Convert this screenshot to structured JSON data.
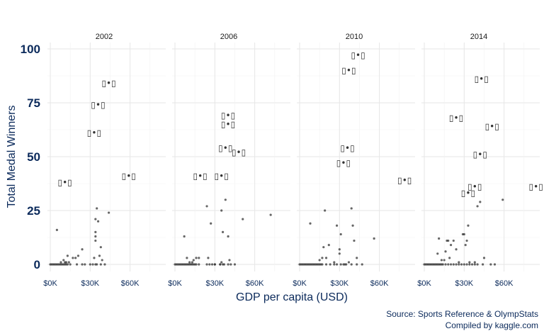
{
  "chart_data": {
    "type": "scatter",
    "facets": [
      "2002",
      "2006",
      "2010",
      "2014"
    ],
    "xlabel": "GDP per capita (USD)",
    "ylabel": "Total Medal Winners",
    "xlim": [
      0,
      80000
    ],
    "ylim": [
      0,
      100
    ],
    "xticks": [
      0,
      30000,
      60000
    ],
    "xtick_labels": [
      "$0K",
      "$30K",
      "$60K"
    ],
    "yticks": [
      0,
      25,
      50,
      75,
      100
    ],
    "grid": true,
    "caption": [
      "Source: Sports Reference & OlympStats",
      "Compiled by kaggle.com"
    ],
    "label_glyph": "▯•▯",
    "panels": [
      {
        "name": "2002",
        "labeled": [
          {
            "x": 11000,
            "y": 38
          },
          {
            "x": 33000,
            "y": 61
          },
          {
            "x": 36000,
            "y": 74
          },
          {
            "x": 44000,
            "y": 84
          },
          {
            "x": 59000,
            "y": 41
          }
        ],
        "points": [
          {
            "x": 0,
            "y": 0
          },
          {
            "x": 1000,
            "y": 0
          },
          {
            "x": 2000,
            "y": 0
          },
          {
            "x": 3000,
            "y": 0
          },
          {
            "x": 4000,
            "y": 0
          },
          {
            "x": 5000,
            "y": 0
          },
          {
            "x": 6000,
            "y": 0
          },
          {
            "x": 7000,
            "y": 0
          },
          {
            "x": 8000,
            "y": 0
          },
          {
            "x": 9000,
            "y": 0
          },
          {
            "x": 10000,
            "y": 0
          },
          {
            "x": 11000,
            "y": 0
          },
          {
            "x": 12000,
            "y": 0
          },
          {
            "x": 13000,
            "y": 0
          },
          {
            "x": 15000,
            "y": 0
          },
          {
            "x": 20000,
            "y": 0
          },
          {
            "x": 24000,
            "y": 0
          },
          {
            "x": 26000,
            "y": 0
          },
          {
            "x": 32000,
            "y": 0
          },
          {
            "x": 34000,
            "y": 0
          },
          {
            "x": 38000,
            "y": 0
          },
          {
            "x": 41000,
            "y": 0
          },
          {
            "x": 5000,
            "y": 16
          },
          {
            "x": 8000,
            "y": 1
          },
          {
            "x": 10000,
            "y": 2
          },
          {
            "x": 11000,
            "y": 1
          },
          {
            "x": 12000,
            "y": 1
          },
          {
            "x": 13000,
            "y": 4
          },
          {
            "x": 14000,
            "y": 1
          },
          {
            "x": 17000,
            "y": 3
          },
          {
            "x": 19000,
            "y": 3
          },
          {
            "x": 21000,
            "y": 4
          },
          {
            "x": 24000,
            "y": 7
          },
          {
            "x": 30000,
            "y": 0
          },
          {
            "x": 33000,
            "y": 3
          },
          {
            "x": 34000,
            "y": 11
          },
          {
            "x": 34000,
            "y": 13
          },
          {
            "x": 34000,
            "y": 15
          },
          {
            "x": 34000,
            "y": 21
          },
          {
            "x": 35000,
            "y": 0
          },
          {
            "x": 35000,
            "y": 26
          },
          {
            "x": 36000,
            "y": 20
          },
          {
            "x": 37000,
            "y": 4
          },
          {
            "x": 38000,
            "y": 8
          },
          {
            "x": 39000,
            "y": 2
          },
          {
            "x": 44000,
            "y": 24
          }
        ]
      },
      {
        "name": "2006",
        "labeled": [
          {
            "x": 19000,
            "y": 41
          },
          {
            "x": 35000,
            "y": 41
          },
          {
            "x": 38000,
            "y": 54
          },
          {
            "x": 40000,
            "y": 65
          },
          {
            "x": 40000,
            "y": 69
          },
          {
            "x": 48000,
            "y": 52
          }
        ],
        "points": [
          {
            "x": 0,
            "y": 0
          },
          {
            "x": 1000,
            "y": 0
          },
          {
            "x": 2000,
            "y": 0
          },
          {
            "x": 3000,
            "y": 0
          },
          {
            "x": 4000,
            "y": 0
          },
          {
            "x": 5000,
            "y": 0
          },
          {
            "x": 6000,
            "y": 0
          },
          {
            "x": 7000,
            "y": 0
          },
          {
            "x": 8000,
            "y": 0
          },
          {
            "x": 9000,
            "y": 0
          },
          {
            "x": 10000,
            "y": 0
          },
          {
            "x": 11000,
            "y": 0
          },
          {
            "x": 12000,
            "y": 0
          },
          {
            "x": 13000,
            "y": 0
          },
          {
            "x": 14000,
            "y": 0
          },
          {
            "x": 15000,
            "y": 0
          },
          {
            "x": 16000,
            "y": 0
          },
          {
            "x": 18000,
            "y": 0
          },
          {
            "x": 24000,
            "y": 0
          },
          {
            "x": 26000,
            "y": 0
          },
          {
            "x": 28000,
            "y": 0
          },
          {
            "x": 30000,
            "y": 0
          },
          {
            "x": 34000,
            "y": 0
          },
          {
            "x": 36000,
            "y": 0
          },
          {
            "x": 40000,
            "y": 0
          },
          {
            "x": 42000,
            "y": 0
          },
          {
            "x": 7000,
            "y": 13
          },
          {
            "x": 9000,
            "y": 3
          },
          {
            "x": 11000,
            "y": 1
          },
          {
            "x": 13000,
            "y": 1
          },
          {
            "x": 14000,
            "y": 2
          },
          {
            "x": 16000,
            "y": 3
          },
          {
            "x": 18000,
            "y": 3
          },
          {
            "x": 24000,
            "y": 27
          },
          {
            "x": 25000,
            "y": 3
          },
          {
            "x": 27000,
            "y": 19
          },
          {
            "x": 30000,
            "y": 0
          },
          {
            "x": 34000,
            "y": 0
          },
          {
            "x": 35000,
            "y": 1
          },
          {
            "x": 35000,
            "y": 25
          },
          {
            "x": 36000,
            "y": 15
          },
          {
            "x": 37000,
            "y": 0
          },
          {
            "x": 38000,
            "y": 30
          },
          {
            "x": 40000,
            "y": 13
          },
          {
            "x": 41000,
            "y": 2
          },
          {
            "x": 45000,
            "y": 0
          },
          {
            "x": 51000,
            "y": 21
          },
          {
            "x": 72000,
            "y": 23
          }
        ]
      },
      {
        "name": "2010",
        "labeled": [
          {
            "x": 33000,
            "y": 47
          },
          {
            "x": 36000,
            "y": 54
          },
          {
            "x": 37000,
            "y": 90
          },
          {
            "x": 44000,
            "y": 97
          },
          {
            "x": 79000,
            "y": 39
          }
        ],
        "points": [
          {
            "x": 0,
            "y": 0
          },
          {
            "x": 1000,
            "y": 0
          },
          {
            "x": 2000,
            "y": 0
          },
          {
            "x": 3000,
            "y": 0
          },
          {
            "x": 4000,
            "y": 0
          },
          {
            "x": 5000,
            "y": 0
          },
          {
            "x": 6000,
            "y": 0
          },
          {
            "x": 7000,
            "y": 0
          },
          {
            "x": 8000,
            "y": 0
          },
          {
            "x": 9000,
            "y": 0
          },
          {
            "x": 10000,
            "y": 0
          },
          {
            "x": 11000,
            "y": 0
          },
          {
            "x": 12000,
            "y": 0
          },
          {
            "x": 13000,
            "y": 0
          },
          {
            "x": 14000,
            "y": 0
          },
          {
            "x": 15000,
            "y": 0
          },
          {
            "x": 16000,
            "y": 0
          },
          {
            "x": 17000,
            "y": 0
          },
          {
            "x": 20000,
            "y": 0
          },
          {
            "x": 23000,
            "y": 0
          },
          {
            "x": 26000,
            "y": 0
          },
          {
            "x": 28000,
            "y": 0
          },
          {
            "x": 31000,
            "y": 0
          },
          {
            "x": 34000,
            "y": 0
          },
          {
            "x": 39000,
            "y": 0
          },
          {
            "x": 43000,
            "y": 0
          },
          {
            "x": 47000,
            "y": 0
          },
          {
            "x": 8000,
            "y": 19
          },
          {
            "x": 15000,
            "y": 2
          },
          {
            "x": 17000,
            "y": 3
          },
          {
            "x": 18000,
            "y": 8
          },
          {
            "x": 19000,
            "y": 25
          },
          {
            "x": 20000,
            "y": 3
          },
          {
            "x": 22000,
            "y": 9
          },
          {
            "x": 26000,
            "y": 1
          },
          {
            "x": 28000,
            "y": 18
          },
          {
            "x": 30000,
            "y": 7
          },
          {
            "x": 30000,
            "y": 5
          },
          {
            "x": 31000,
            "y": 14
          },
          {
            "x": 33000,
            "y": 0
          },
          {
            "x": 35000,
            "y": 0
          },
          {
            "x": 37000,
            "y": 1
          },
          {
            "x": 39000,
            "y": 26
          },
          {
            "x": 40000,
            "y": 18
          },
          {
            "x": 41000,
            "y": 11
          },
          {
            "x": 43000,
            "y": 3
          },
          {
            "x": 56000,
            "y": 12
          }
        ]
      },
      {
        "name": "2014",
        "labeled": [
          {
            "x": 33000,
            "y": 33
          },
          {
            "x": 38000,
            "y": 36
          },
          {
            "x": 42000,
            "y": 51
          },
          {
            "x": 43000,
            "y": 86
          },
          {
            "x": 24000,
            "y": 68
          },
          {
            "x": 51000,
            "y": 64
          },
          {
            "x": 84000,
            "y": 36
          }
        ],
        "points": [
          {
            "x": 0,
            "y": 0
          },
          {
            "x": 1000,
            "y": 0
          },
          {
            "x": 2000,
            "y": 0
          },
          {
            "x": 3000,
            "y": 0
          },
          {
            "x": 4000,
            "y": 0
          },
          {
            "x": 5000,
            "y": 0
          },
          {
            "x": 6000,
            "y": 0
          },
          {
            "x": 7000,
            "y": 0
          },
          {
            "x": 8000,
            "y": 0
          },
          {
            "x": 9000,
            "y": 0
          },
          {
            "x": 10000,
            "y": 0
          },
          {
            "x": 11000,
            "y": 0
          },
          {
            "x": 12000,
            "y": 0
          },
          {
            "x": 13000,
            "y": 0
          },
          {
            "x": 14000,
            "y": 0
          },
          {
            "x": 16000,
            "y": 0
          },
          {
            "x": 18000,
            "y": 0
          },
          {
            "x": 20000,
            "y": 0
          },
          {
            "x": 22000,
            "y": 0
          },
          {
            "x": 24000,
            "y": 0
          },
          {
            "x": 26000,
            "y": 0
          },
          {
            "x": 28000,
            "y": 0
          },
          {
            "x": 30000,
            "y": 0
          },
          {
            "x": 32000,
            "y": 0
          },
          {
            "x": 34000,
            "y": 0
          },
          {
            "x": 36000,
            "y": 0
          },
          {
            "x": 38000,
            "y": 0
          },
          {
            "x": 40000,
            "y": 0
          },
          {
            "x": 44000,
            "y": 0
          },
          {
            "x": 50000,
            "y": 0
          },
          {
            "x": 53000,
            "y": 0
          },
          {
            "x": 10000,
            "y": 5
          },
          {
            "x": 11000,
            "y": 12
          },
          {
            "x": 13000,
            "y": 2
          },
          {
            "x": 15000,
            "y": 2
          },
          {
            "x": 16000,
            "y": 6
          },
          {
            "x": 17000,
            "y": 11
          },
          {
            "x": 18000,
            "y": 11
          },
          {
            "x": 19000,
            "y": 3
          },
          {
            "x": 20000,
            "y": 9
          },
          {
            "x": 22000,
            "y": 11
          },
          {
            "x": 24000,
            "y": 7
          },
          {
            "x": 26000,
            "y": 1
          },
          {
            "x": 29000,
            "y": 14
          },
          {
            "x": 30000,
            "y": 14
          },
          {
            "x": 31000,
            "y": 9
          },
          {
            "x": 32000,
            "y": 11
          },
          {
            "x": 33000,
            "y": 18
          },
          {
            "x": 34000,
            "y": 1
          },
          {
            "x": 38000,
            "y": 1
          },
          {
            "x": 40000,
            "y": 27
          },
          {
            "x": 42000,
            "y": 29
          },
          {
            "x": 45000,
            "y": 3
          },
          {
            "x": 59000,
            "y": 30
          }
        ]
      }
    ]
  }
}
